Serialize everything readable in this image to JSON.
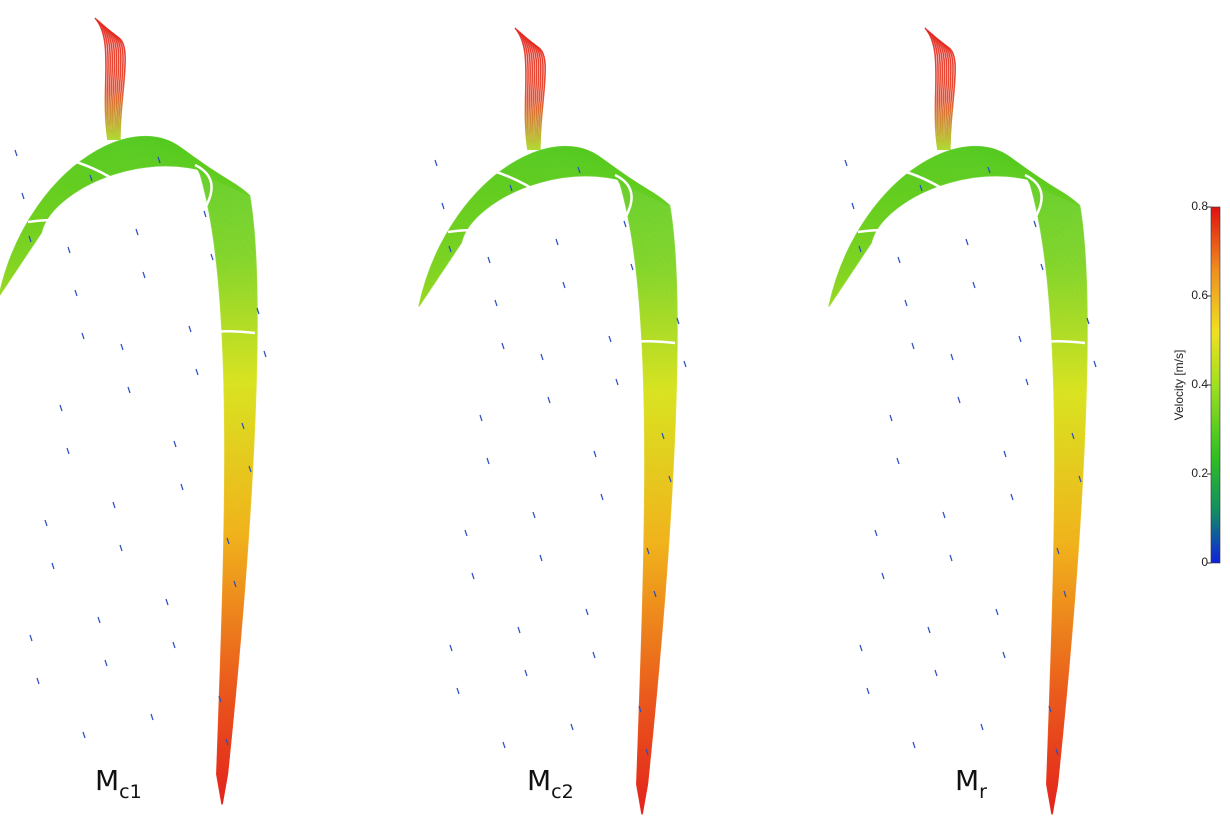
{
  "panels": [
    {
      "label": {
        "main": "M",
        "sub": "c1"
      }
    },
    {
      "label": {
        "main": "M",
        "sub": "c2"
      }
    },
    {
      "label": {
        "main": "M",
        "sub": "r"
      }
    }
  ],
  "colorbar": {
    "label": "Velocity [m/s]",
    "lim": [
      0,
      0.8
    ],
    "ticks": [
      0,
      0.2,
      0.4,
      0.6,
      0.8
    ]
  }
}
